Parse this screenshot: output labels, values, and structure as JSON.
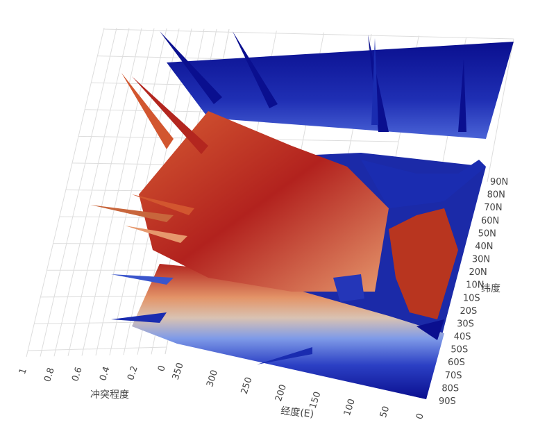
{
  "chart_data": {
    "type": "surface-3d",
    "title": "",
    "x_axis": {
      "label": "经度(E)",
      "ticks": [
        "0",
        "50",
        "100",
        "150",
        "200",
        "250",
        "300",
        "350"
      ],
      "range": [
        0,
        360
      ]
    },
    "y_axis": {
      "label": "纬度",
      "ticks": [
        "90S",
        "80S",
        "70S",
        "60S",
        "50S",
        "40S",
        "30S",
        "20S",
        "10S",
        "10N",
        "20N",
        "30N",
        "40N",
        "50N",
        "60N",
        "70N",
        "80N",
        "90N"
      ],
      "range": [
        "90S",
        "90N"
      ]
    },
    "z_axis": {
      "label": "冲突程度",
      "ticks": [
        "0",
        "0.2",
        "0.4",
        "0.6",
        "0.8",
        "1"
      ],
      "range": [
        0,
        1
      ]
    },
    "colorscale": [
      "#0a0f8f",
      "#2b3fc4",
      "#6f8fe6",
      "#c9c9d6",
      "#e9a27a",
      "#d2562f",
      "#a81c1c"
    ],
    "grid": true,
    "legend": "none"
  }
}
